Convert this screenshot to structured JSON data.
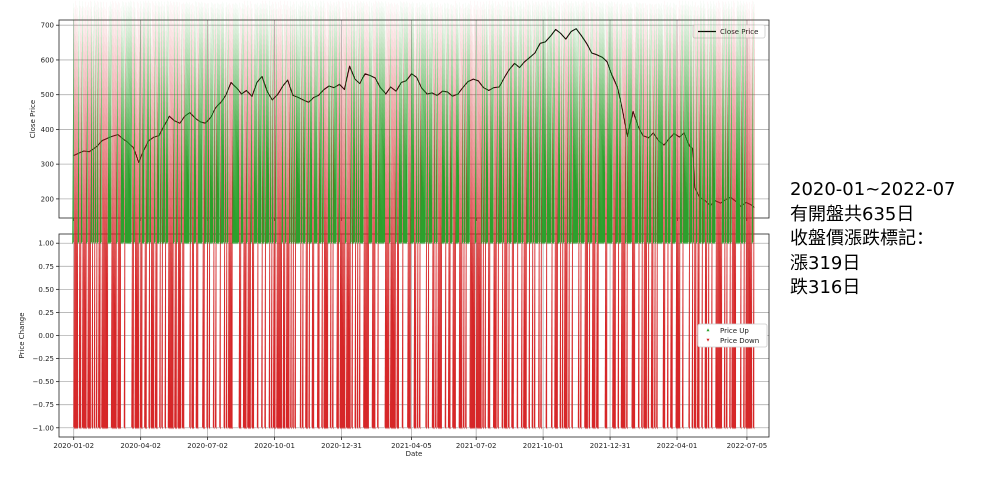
{
  "chart_data": [
    {
      "type": "line",
      "ylabel": "Close Price",
      "ylim": [
        145,
        715
      ],
      "yticks": [
        200,
        300,
        400,
        500,
        600,
        700
      ],
      "grid": true,
      "legend": {
        "position": "top-right",
        "entries": [
          "Close Price"
        ]
      },
      "line_color": "#000000",
      "series": [
        {
          "name": "Close Price",
          "points": [
            [
              "2020-01-02",
              325
            ],
            [
              "2020-01-09",
              332
            ],
            [
              "2020-01-16",
              338
            ],
            [
              "2020-01-23",
              336
            ],
            [
              "2020-02-03",
              352
            ],
            [
              "2020-02-10",
              368
            ],
            [
              "2020-02-20",
              378
            ],
            [
              "2020-03-02",
              385
            ],
            [
              "2020-03-09",
              372
            ],
            [
              "2020-03-16",
              362
            ],
            [
              "2020-03-23",
              348
            ],
            [
              "2020-03-30",
              305
            ],
            [
              "2020-04-06",
              338
            ],
            [
              "2020-04-13",
              368
            ],
            [
              "2020-04-20",
              378
            ],
            [
              "2020-04-27",
              382
            ],
            [
              "2020-05-04",
              412
            ],
            [
              "2020-05-11",
              438
            ],
            [
              "2020-05-18",
              425
            ],
            [
              "2020-05-25",
              418
            ],
            [
              "2020-06-01",
              438
            ],
            [
              "2020-06-08",
              448
            ],
            [
              "2020-06-15",
              432
            ],
            [
              "2020-06-22",
              422
            ],
            [
              "2020-06-29",
              418
            ],
            [
              "2020-07-06",
              435
            ],
            [
              "2020-07-13",
              462
            ],
            [
              "2020-07-20",
              478
            ],
            [
              "2020-07-27",
              500
            ],
            [
              "2020-08-03",
              535
            ],
            [
              "2020-08-10",
              520
            ],
            [
              "2020-08-17",
              502
            ],
            [
              "2020-08-24",
              512
            ],
            [
              "2020-08-31",
              495
            ],
            [
              "2020-09-07",
              535
            ],
            [
              "2020-09-14",
              552
            ],
            [
              "2020-09-21",
              508
            ],
            [
              "2020-09-28",
              485
            ],
            [
              "2020-10-05",
              500
            ],
            [
              "2020-10-12",
              525
            ],
            [
              "2020-10-19",
              542
            ],
            [
              "2020-10-26",
              498
            ],
            [
              "2020-11-02",
              492
            ],
            [
              "2020-11-09",
              485
            ],
            [
              "2020-11-16",
              478
            ],
            [
              "2020-11-23",
              492
            ],
            [
              "2020-11-30",
              498
            ],
            [
              "2020-12-07",
              515
            ],
            [
              "2020-12-14",
              525
            ],
            [
              "2020-12-21",
              520
            ],
            [
              "2020-12-28",
              530
            ],
            [
              "2021-01-04",
              515
            ],
            [
              "2021-01-11",
              582
            ],
            [
              "2021-01-18",
              545
            ],
            [
              "2021-01-25",
              532
            ],
            [
              "2021-02-01",
              560
            ],
            [
              "2021-02-08",
              555
            ],
            [
              "2021-02-15",
              548
            ],
            [
              "2021-02-22",
              520
            ],
            [
              "2021-03-01",
              502
            ],
            [
              "2021-03-08",
              522
            ],
            [
              "2021-03-15",
              510
            ],
            [
              "2021-03-22",
              535
            ],
            [
              "2021-03-29",
              540
            ],
            [
              "2021-04-05",
              560
            ],
            [
              "2021-04-12",
              550
            ],
            [
              "2021-04-19",
              520
            ],
            [
              "2021-04-26",
              502
            ],
            [
              "2021-05-03",
              505
            ],
            [
              "2021-05-10",
              498
            ],
            [
              "2021-05-17",
              510
            ],
            [
              "2021-05-24",
              508
            ],
            [
              "2021-05-31",
              496
            ],
            [
              "2021-06-07",
              502
            ],
            [
              "2021-06-14",
              520
            ],
            [
              "2021-06-21",
              538
            ],
            [
              "2021-06-28",
              545
            ],
            [
              "2021-07-05",
              540
            ],
            [
              "2021-07-12",
              520
            ],
            [
              "2021-07-19",
              512
            ],
            [
              "2021-07-26",
              520
            ],
            [
              "2021-08-02",
              522
            ],
            [
              "2021-08-09",
              548
            ],
            [
              "2021-08-16",
              572
            ],
            [
              "2021-08-23",
              590
            ],
            [
              "2021-08-30",
              578
            ],
            [
              "2021-09-06",
              595
            ],
            [
              "2021-09-13",
              608
            ],
            [
              "2021-09-20",
              620
            ],
            [
              "2021-09-27",
              648
            ],
            [
              "2021-10-04",
              652
            ],
            [
              "2021-10-11",
              668
            ],
            [
              "2021-10-18",
              688
            ],
            [
              "2021-10-25",
              676
            ],
            [
              "2021-11-01",
              660
            ],
            [
              "2021-11-08",
              682
            ],
            [
              "2021-11-15",
              690
            ],
            [
              "2021-11-22",
              670
            ],
            [
              "2021-11-29",
              648
            ],
            [
              "2021-12-06",
              620
            ],
            [
              "2021-12-13",
              615
            ],
            [
              "2021-12-20",
              608
            ],
            [
              "2021-12-27",
              595
            ],
            [
              "2022-01-03",
              555
            ],
            [
              "2022-01-10",
              520
            ],
            [
              "2022-01-17",
              455
            ],
            [
              "2022-01-24",
              380
            ],
            [
              "2022-01-31",
              452
            ],
            [
              "2022-02-07",
              410
            ],
            [
              "2022-02-14",
              382
            ],
            [
              "2022-02-21",
              376
            ],
            [
              "2022-02-28",
              390
            ],
            [
              "2022-03-07",
              368
            ],
            [
              "2022-03-14",
              355
            ],
            [
              "2022-03-21",
              372
            ],
            [
              "2022-03-28",
              388
            ],
            [
              "2022-04-04",
              378
            ],
            [
              "2022-04-11",
              390
            ],
            [
              "2022-04-18",
              352
            ],
            [
              "2022-04-22",
              345
            ],
            [
              "2022-04-25",
              232
            ],
            [
              "2022-05-02",
              205
            ],
            [
              "2022-05-09",
              195
            ],
            [
              "2022-05-16",
              180
            ],
            [
              "2022-05-23",
              195
            ],
            [
              "2022-05-30",
              188
            ],
            [
              "2022-06-06",
              198
            ],
            [
              "2022-06-13",
              205
            ],
            [
              "2022-06-20",
              192
            ],
            [
              "2022-06-27",
              178
            ],
            [
              "2022-07-04",
              190
            ],
            [
              "2022-07-11",
              182
            ],
            [
              "2022-07-15",
              175
            ]
          ]
        }
      ]
    },
    {
      "type": "scatter",
      "xlabel": "Date",
      "ylabel": "Price Change",
      "ylim": [
        -1.1,
        1.1
      ],
      "yticks": [
        "1.00",
        "0.75",
        "0.50",
        "0.25",
        "0.00",
        "−0.25",
        "−0.50",
        "−0.75",
        "−1.00"
      ],
      "xticks": [
        "2020-01-02",
        "2020-04-02",
        "2020-07-02",
        "2020-10-01",
        "2020-12-31",
        "2021-04-05",
        "2021-07-02",
        "2021-10-01",
        "2021-12-31",
        "2022-04-01",
        "2022-07-05"
      ],
      "x_start": "2020-01-02",
      "x_end": "2022-07-15",
      "grid": true,
      "legend": {
        "position": "right",
        "entries": [
          "Price Up",
          "Price Down"
        ]
      },
      "series": [
        {
          "name": "Price Up",
          "y": 1.0,
          "color": "#2ca02c",
          "marker": "triangle-up",
          "count": 319
        },
        {
          "name": "Price Down",
          "y": -1.0,
          "color": "#d62728",
          "marker": "triangle-down",
          "count": 316
        }
      ]
    }
  ],
  "side_note": {
    "line1": "2020-01~2022-07",
    "line2": "有開盤共635日",
    "line3": "收盤價漲跌標記：",
    "line4": "漲319日",
    "line5": "跌316日"
  }
}
